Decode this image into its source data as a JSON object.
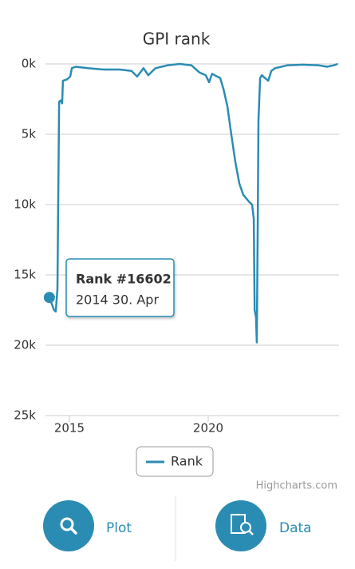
{
  "chart_data": {
    "type": "line",
    "title": "GPI rank",
    "x": [
      2014.28,
      2014.45,
      2014.51,
      2014.57,
      2014.63,
      2014.68,
      2014.74,
      2014.77,
      2014.91,
      2015.03,
      2015.09,
      2015.23,
      2015.66,
      2016.24,
      2016.81,
      2017.24,
      2017.44,
      2017.67,
      2017.84,
      2018.1,
      2018.53,
      2018.97,
      2019.4,
      2019.68,
      2019.91,
      2020.03,
      2020.14,
      2020.32,
      2020.43,
      2020.55,
      2020.69,
      2020.83,
      2020.98,
      2021.12,
      2021.26,
      2021.47,
      2021.58,
      2021.64,
      2021.67,
      2021.72,
      2021.75,
      2021.78,
      2021.81,
      2021.87,
      2021.93,
      2022.04,
      2022.16,
      2022.27,
      2022.41,
      2022.84,
      2023.42,
      2023.99,
      2024.28,
      2024.51,
      2024.66
    ],
    "series": [
      {
        "name": "Rank",
        "color": "#2b8cb3",
        "values": [
          16602,
          17500,
          17600,
          16000,
          2700,
          2600,
          2800,
          1200,
          1100,
          900,
          300,
          200,
          300,
          400,
          400,
          500,
          900,
          300,
          800,
          300,
          100,
          0,
          100,
          600,
          800,
          1300,
          700,
          900,
          1000,
          1800,
          3000,
          5000,
          7000,
          8500,
          9300,
          9800,
          10000,
          11000,
          17500,
          18000,
          19800,
          12000,
          4000,
          1000,
          800,
          1000,
          1200,
          500,
          300,
          100,
          50,
          100,
          200,
          100,
          0
        ]
      }
    ],
    "xlim": [
      2014.14,
      2024.71
    ],
    "xticks": [
      2015,
      2020
    ],
    "ylim": [
      0,
      25000
    ],
    "y_reversed": true,
    "yticks": [
      {
        "value": 0,
        "label": "0k"
      },
      {
        "value": 5000,
        "label": "5k"
      },
      {
        "value": 10000,
        "label": "10k"
      },
      {
        "value": 15000,
        "label": "15k"
      },
      {
        "value": 20000,
        "label": "20k"
      },
      {
        "value": 25000,
        "label": "25k"
      }
    ],
    "grid": true,
    "tooltip": {
      "title": "Rank #16602",
      "subtitle": "2014 30. Apr"
    },
    "credits": "Highcharts.com"
  },
  "buttons": [
    "Plot",
    "Data"
  ]
}
